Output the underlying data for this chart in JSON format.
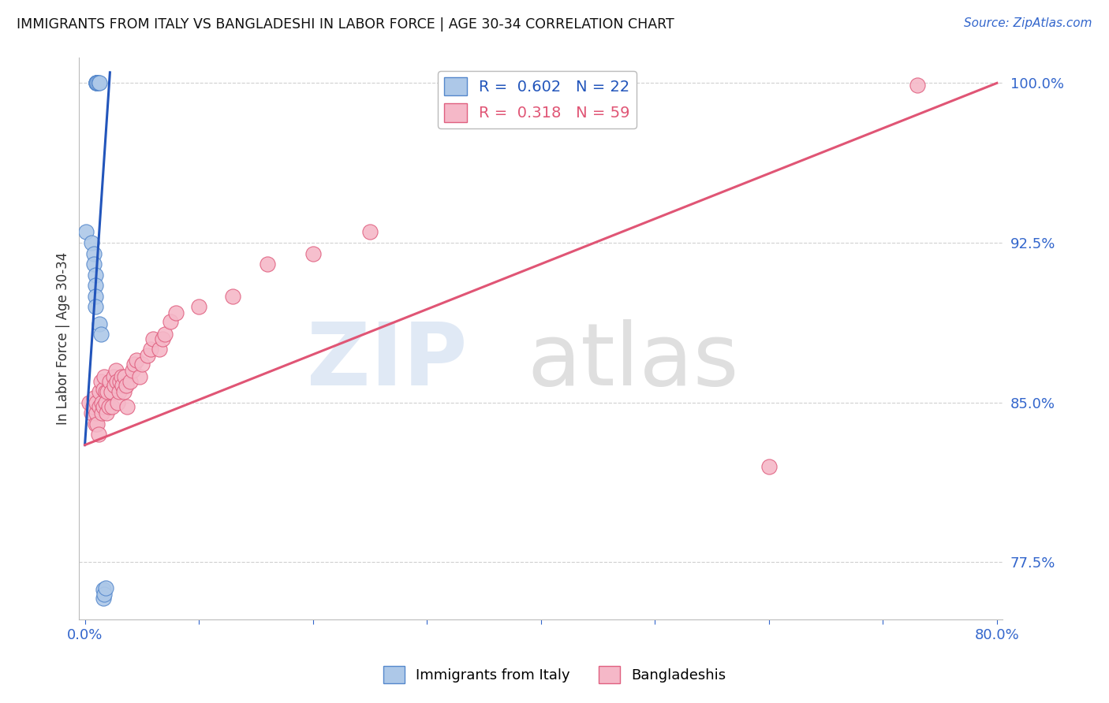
{
  "title": "IMMIGRANTS FROM ITALY VS BANGLADESHI IN LABOR FORCE | AGE 30-34 CORRELATION CHART",
  "source": "Source: ZipAtlas.com",
  "ylabel": "In Labor Force | Age 30-34",
  "xlim": [
    -0.005,
    0.805
  ],
  "ylim": [
    0.748,
    1.012
  ],
  "xtick_positions": [
    0.0,
    0.1,
    0.2,
    0.3,
    0.4,
    0.5,
    0.6,
    0.7,
    0.8
  ],
  "xticklabels": [
    "0.0%",
    "",
    "",
    "",
    "",
    "",
    "",
    "",
    "80.0%"
  ],
  "yticks_right": [
    1.0,
    0.925,
    0.85,
    0.775
  ],
  "ytick_right_labels": [
    "100.0%",
    "92.5%",
    "85.0%",
    "77.5%"
  ],
  "grid_color": "#d0d0d0",
  "background_color": "#ffffff",
  "italy_color": "#adc8e8",
  "italy_edge_color": "#5588cc",
  "bangla_color": "#f5b8c8",
  "bangla_edge_color": "#e06080",
  "italy_line_color": "#2255bb",
  "bangla_line_color": "#e05575",
  "legend_italy_label": "R =  0.602   N = 22",
  "legend_bangla_label": "R =  0.318   N = 59",
  "bottom_legend_italy": "Immigrants from Italy",
  "bottom_legend_bangla": "Bangladeshis",
  "italy_x": [
    0.001,
    0.006,
    0.008,
    0.008,
    0.009,
    0.009,
    0.009,
    0.009,
    0.01,
    0.01,
    0.01,
    0.01,
    0.011,
    0.011,
    0.012,
    0.013,
    0.013,
    0.014,
    0.016,
    0.016,
    0.017,
    0.018
  ],
  "italy_y": [
    0.93,
    0.925,
    0.92,
    0.915,
    0.91,
    0.905,
    0.9,
    0.895,
    1.0,
    1.0,
    1.0,
    1.0,
    1.0,
    1.0,
    1.0,
    1.0,
    0.887,
    0.882,
    0.762,
    0.758,
    0.76,
    0.763
  ],
  "bangla_x": [
    0.004,
    0.006,
    0.007,
    0.008,
    0.009,
    0.01,
    0.01,
    0.011,
    0.012,
    0.013,
    0.013,
    0.014,
    0.015,
    0.015,
    0.016,
    0.016,
    0.017,
    0.018,
    0.018,
    0.019,
    0.02,
    0.021,
    0.022,
    0.023,
    0.024,
    0.025,
    0.026,
    0.027,
    0.028,
    0.029,
    0.03,
    0.031,
    0.032,
    0.033,
    0.034,
    0.035,
    0.036,
    0.037,
    0.04,
    0.042,
    0.043,
    0.045,
    0.048,
    0.05,
    0.055,
    0.058,
    0.06,
    0.065,
    0.068,
    0.07,
    0.075,
    0.08,
    0.1,
    0.13,
    0.16,
    0.2,
    0.25,
    0.6,
    0.73
  ],
  "bangla_y": [
    0.85,
    0.845,
    0.848,
    0.852,
    0.84,
    0.845,
    0.85,
    0.84,
    0.835,
    0.848,
    0.855,
    0.86,
    0.845,
    0.85,
    0.848,
    0.856,
    0.862,
    0.855,
    0.85,
    0.845,
    0.855,
    0.848,
    0.86,
    0.855,
    0.848,
    0.862,
    0.858,
    0.865,
    0.86,
    0.85,
    0.855,
    0.86,
    0.862,
    0.858,
    0.855,
    0.862,
    0.858,
    0.848,
    0.86,
    0.865,
    0.868,
    0.87,
    0.862,
    0.868,
    0.872,
    0.875,
    0.88,
    0.875,
    0.88,
    0.882,
    0.888,
    0.892,
    0.895,
    0.9,
    0.915,
    0.92,
    0.93,
    0.82,
    0.999
  ],
  "italy_line_x": [
    0.0,
    0.022
  ],
  "italy_line_y": [
    0.83,
    1.005
  ],
  "bangla_line_x": [
    0.0,
    0.8
  ],
  "bangla_line_y": [
    0.83,
    1.0
  ]
}
